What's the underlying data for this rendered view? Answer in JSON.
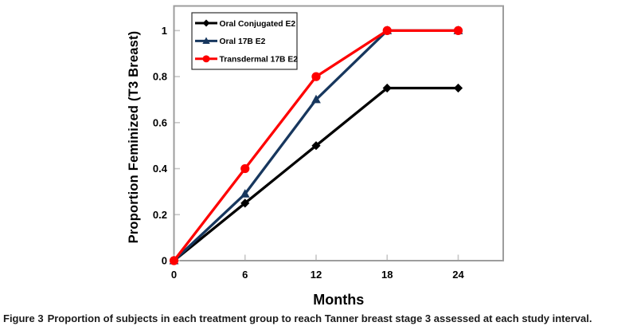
{
  "caption": {
    "label": "Figure 3",
    "text": "Proportion of subjects in each treatment group to reach Tanner breast stage 3 assessed at each study interval."
  },
  "chart_data": {
    "type": "line",
    "x": [
      0,
      6,
      12,
      18,
      24
    ],
    "series": [
      {
        "name": "Oral Conjugated E2",
        "color": "#000000",
        "marker": "diamond",
        "values": [
          0,
          0.25,
          0.5,
          0.75,
          0.75
        ]
      },
      {
        "name": "Oral 17B E2",
        "color": "#17375e",
        "marker": "triangle",
        "values": [
          0,
          0.29,
          0.7,
          1,
          1
        ]
      },
      {
        "name": "Transdermal 17B E2",
        "color": "#fe0000",
        "marker": "circle",
        "values": [
          0,
          0.4,
          0.8,
          1,
          1
        ]
      }
    ],
    "xlabel": "Months",
    "ylabel": "Proportion Feminized (T3 Breast)",
    "xticks": [
      0,
      6,
      12,
      18,
      24
    ],
    "yticks": [
      0,
      0.2,
      0.4,
      0.6,
      0.8,
      1
    ],
    "xlim": [
      0,
      27.8
    ],
    "ylim": [
      0,
      1.107
    ],
    "grid": false,
    "legend_position": "top-left",
    "plot_border_color": "#9d9d9d",
    "tick_color": "#c6c6c6",
    "background": "#ffffff"
  }
}
